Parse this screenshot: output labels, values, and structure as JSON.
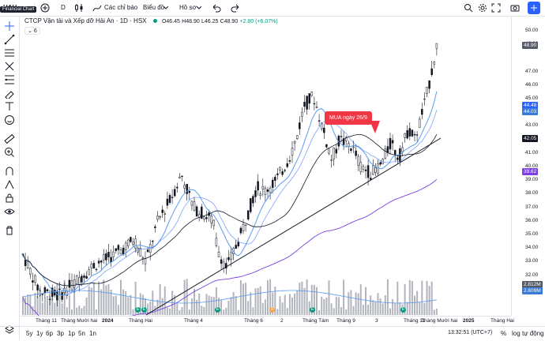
{
  "window": {
    "tooltip": "Financial Chart"
  },
  "toolbar": {
    "symbol": "HAH",
    "interval": "D",
    "indicators_label": "Các chỉ báo",
    "chart_type_label": "Biểu đồ",
    "template_label": "Hồ sơ"
  },
  "legend": {
    "title": "CTCP Vận tải và Xếp dỡ Hải An · 1D · HSX",
    "o": "O46.45",
    "h": "H48.90",
    "l": "L46.25",
    "c": "C48.90",
    "change": "+2.80 (+6.07%)",
    "badge": "6"
  },
  "annotation": {
    "text": "MUA ngày 26/9"
  },
  "price_scale": {
    "labels": [
      "50.00",
      "49.00",
      "47.00",
      "46.00",
      "45.00",
      "43.00",
      "41.00",
      "40.00",
      "39.00",
      "38.00",
      "37.00",
      "36.00",
      "35.00",
      "34.00",
      "33.00",
      "32.00"
    ],
    "badges": [
      {
        "text": "48.90",
        "color": "#555a66",
        "price": 48.9
      },
      {
        "text": "44.48",
        "color": "#2962ff",
        "price": 44.48
      },
      {
        "text": "44.03",
        "color": "#3a7bd5",
        "price": 44.03
      },
      {
        "text": "42.05",
        "color": "#131722",
        "price": 42.05
      },
      {
        "text": "39.62",
        "color": "#7b3fe4",
        "price": 39.62
      },
      {
        "text": "2.812M",
        "color": "#555a66",
        "price": 31.3
      },
      {
        "text": "2.609M",
        "color": "#3a7bd5",
        "price": 30.8
      }
    ]
  },
  "time_scale": {
    "labels": [
      "Tháng 11",
      "Tháng Mười hai",
      "2024",
      "Tháng Hai",
      "Tháng 4",
      "Tháng 6",
      "2",
      "Tháng Tám",
      "Tháng 9",
      "3",
      "Tháng 11",
      "Tháng Mười hai",
      "2025",
      "Tháng Hai"
    ]
  },
  "bottom": {
    "ranges": [
      "5y",
      "1y",
      "6p",
      "3p",
      "1p",
      "5n",
      "1n"
    ],
    "clock": "13:32:51 (UTC+7)",
    "percent": "%",
    "log": "log",
    "auto": "tự động"
  },
  "colors": {
    "accent": "#2962ff",
    "annotation": "#f23645",
    "ma_blue": "#3a7bd5",
    "ma_black": "#131722",
    "ma_purple": "#7b3fe4"
  }
}
